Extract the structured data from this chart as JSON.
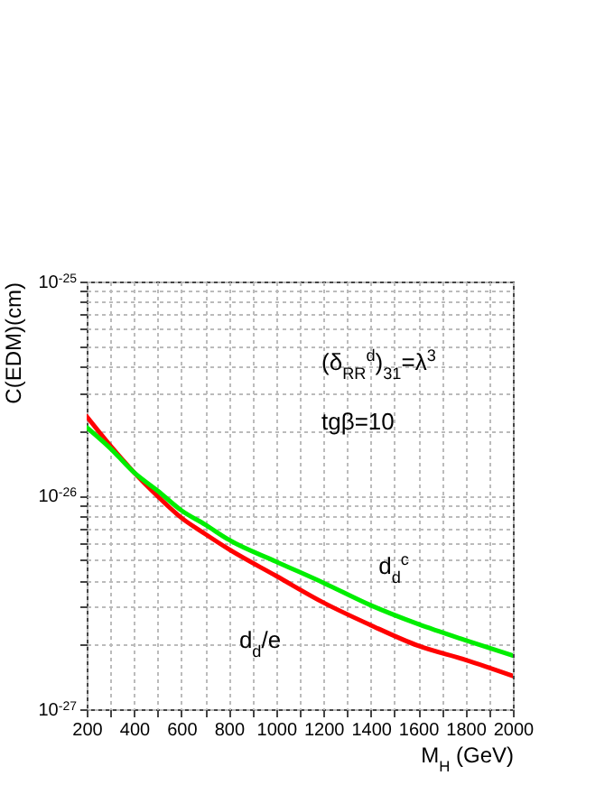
{
  "chart_data": {
    "type": "line",
    "xlabel": "M$_{H}$ (GeV)",
    "ylabel": "C(EDM)(cm)",
    "log": "y",
    "grid": true,
    "legend": false,
    "marker": "none",
    "line_style": "solid",
    "x": [
      200,
      300,
      400,
      500,
      600,
      700,
      800,
      1000,
      1200,
      1400,
      1600,
      1800,
      2000
    ],
    "series": [
      {
        "name": "d$_{d}$/e",
        "color": "#ff0000",
        "values": [
          2.34e-26,
          1.71e-26,
          1.28e-26,
          9.9e-27,
          7.85e-27,
          6.6e-27,
          5.6e-27,
          4.2e-27,
          3.15e-27,
          2.47e-27,
          1.98e-27,
          1.7e-27,
          1.43e-27
        ]
      },
      {
        "name": "d$_{d}$$^{c}$",
        "color": "#00ee00",
        "values": [
          2.08e-26,
          1.66e-26,
          1.28e-26,
          1.05e-26,
          8.5e-27,
          7.3e-27,
          6.2e-27,
          4.9e-27,
          3.9e-27,
          3.06e-27,
          2.5e-27,
          2.1e-27,
          1.78e-27
        ]
      }
    ],
    "annotations": [
      "(δ$_{RR}$$^{d}$)$_{31}$=λ$^{3}$",
      "tgβ=10"
    ],
    "xlim": [
      200,
      2000
    ],
    "xticks": [
      200,
      {
        "value": 300,
        "label": null
      },
      400,
      {
        "value": 500,
        "label": null
      },
      600,
      {
        "value": 700,
        "label": null
      },
      800,
      {
        "value": 900,
        "label": null
      },
      1000,
      {
        "value": 1100,
        "label": null
      },
      1200,
      {
        "value": 1300,
        "label": null
      },
      1400,
      {
        "value": 1500,
        "label": null
      },
      1600,
      {
        "value": 1700,
        "label": null
      },
      1800,
      {
        "value": 1900,
        "label": null
      },
      2000
    ],
    "ylim": [
      1e-27,
      1e-25
    ],
    "yticks": [
      {
        "value": 1e-27,
        "label": "10$^{-27}$"
      },
      {
        "value": 2e-27,
        "label": null
      },
      {
        "value": 3e-27,
        "label": null
      },
      {
        "value": 4e-27,
        "label": null
      },
      {
        "value": 5e-27,
        "label": null
      },
      {
        "value": 6e-27,
        "label": null
      },
      {
        "value": 7e-27,
        "label": null
      },
      {
        "value": 8e-27,
        "label": null
      },
      {
        "value": 9e-27,
        "label": null
      },
      {
        "value": 1e-26,
        "label": "10$^{-26}$"
      },
      {
        "value": 2e-26,
        "label": null
      },
      {
        "value": 3e-26,
        "label": null
      },
      {
        "value": 4e-26,
        "label": null
      },
      {
        "value": 5e-26,
        "label": null
      },
      {
        "value": 6e-26,
        "label": null
      },
      {
        "value": 7e-26,
        "label": null
      },
      {
        "value": 8e-26,
        "label": null
      },
      {
        "value": 9e-26,
        "label": null
      },
      {
        "value": 1e-25,
        "label": "10$^{-25}$"
      }
    ]
  }
}
